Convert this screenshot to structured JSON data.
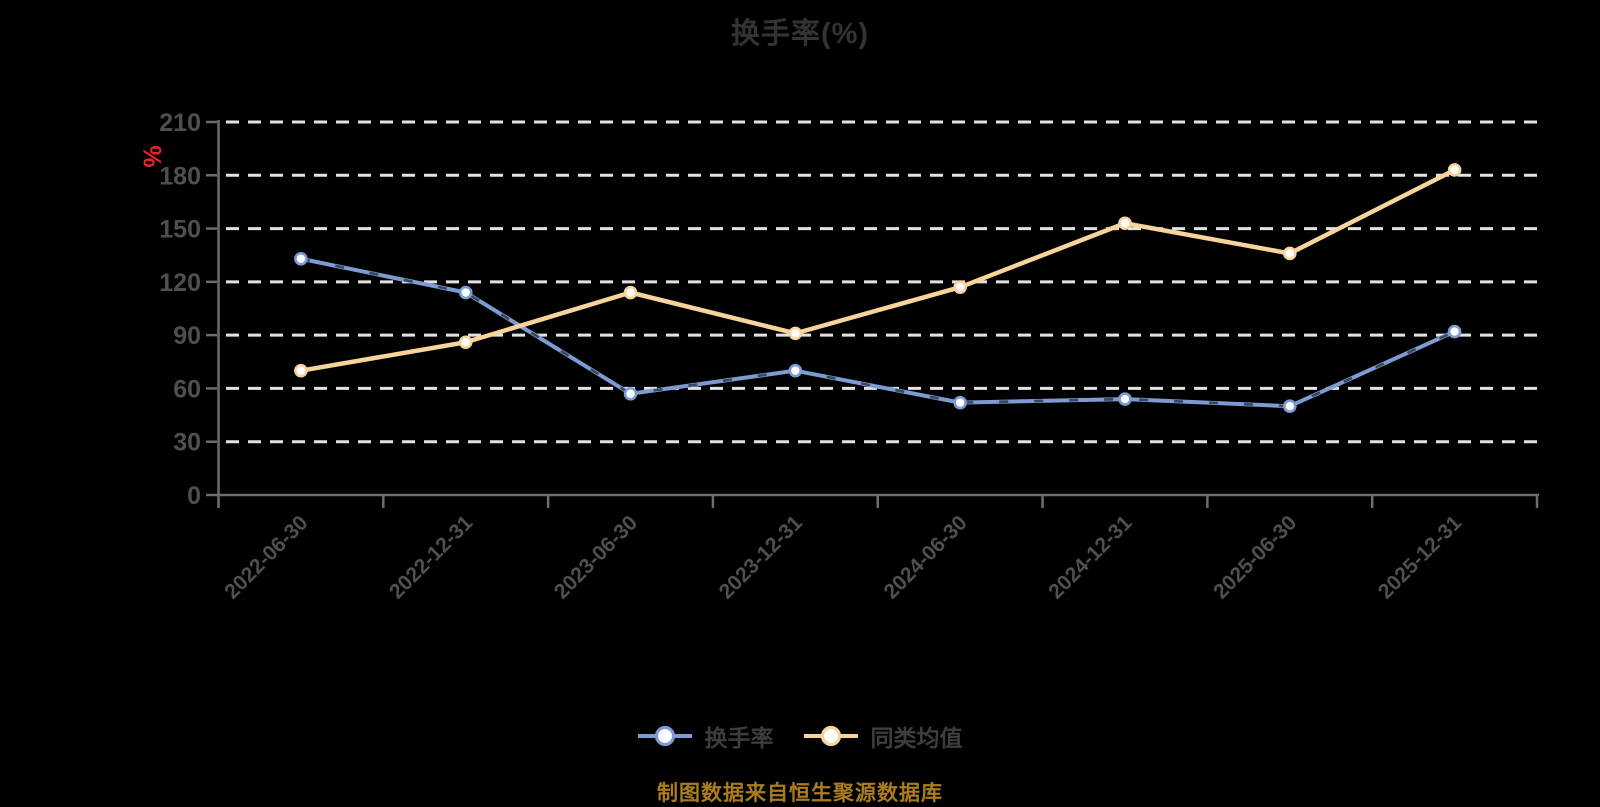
{
  "title": "换手率(%)",
  "y_axis_unit": "%",
  "source_note": "制图数据来自恒生聚源数据库",
  "colors": {
    "background": "#000000",
    "title_text": "#333333",
    "axis_label": "#4f4f4f",
    "axis_line": "#6d6d6d",
    "gridline": "#e2e2e2",
    "unit_label": "#e8232b",
    "source_text": "#aa7c1f",
    "turnover_line": "#7d9bd3",
    "peer_avg_line": "#f7d49a",
    "marker_fill": "#ffffff"
  },
  "chart_data": {
    "type": "line",
    "title": "换手率(%)",
    "categories": [
      "2022-06-30",
      "2022-12-31",
      "2023-06-30",
      "2023-12-31",
      "2024-06-30",
      "2024-12-31",
      "2025-06-30",
      "2025-12-31"
    ],
    "series": [
      {
        "name": "换手率",
        "color": "#7d9bd3",
        "values": [
          133,
          114,
          57,
          70,
          52,
          54,
          50,
          92
        ]
      },
      {
        "name": "同类均值",
        "color": "#f7d49a",
        "values": [
          70,
          86,
          114,
          91,
          117,
          153,
          136,
          183
        ]
      }
    ],
    "ylim": [
      0,
      210
    ],
    "y_tick_step": 30,
    "y_tick_labels": [
      "0",
      "30",
      "60",
      "90",
      "120",
      "150",
      "180",
      "210"
    ],
    "y_unit": "%",
    "xlabel": "",
    "ylabel": "%",
    "grid": "horizontal-dashed",
    "legend_position": "bottom",
    "marker": "circle-white-fill"
  }
}
